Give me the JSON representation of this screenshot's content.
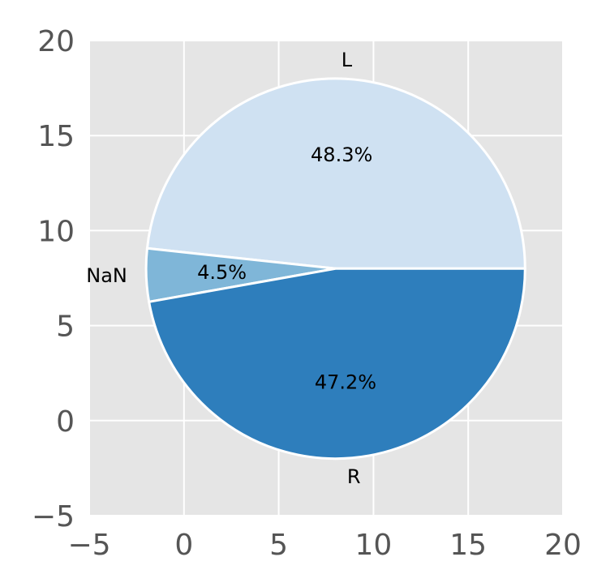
{
  "chart_data": {
    "type": "pie",
    "title": "",
    "xlabel": "",
    "ylabel": "",
    "xlim": [
      -5,
      20
    ],
    "ylim": [
      -5,
      20
    ],
    "xticks": [
      "−5",
      "0",
      "5",
      "10",
      "15",
      "20"
    ],
    "yticks": [
      "−5",
      "0",
      "5",
      "10",
      "15",
      "20"
    ],
    "grid": true,
    "pie": {
      "center": [
        8,
        8
      ],
      "radius": 10,
      "start_angle": 0,
      "direction": "counterclockwise"
    },
    "slices": [
      {
        "label": "L",
        "value": 48.3,
        "pct_label": "48.3%",
        "color": "#cfe1f2"
      },
      {
        "label": "NaN",
        "value": 4.5,
        "pct_label": "4.5%",
        "color": "#7fb6d8"
      },
      {
        "label": "R",
        "value": 47.2,
        "pct_label": "47.2%",
        "color": "#2e7ebc"
      }
    ],
    "background": "#e5e5e5",
    "grid_color": "#ffffff",
    "edge_color": "#ffffff"
  }
}
